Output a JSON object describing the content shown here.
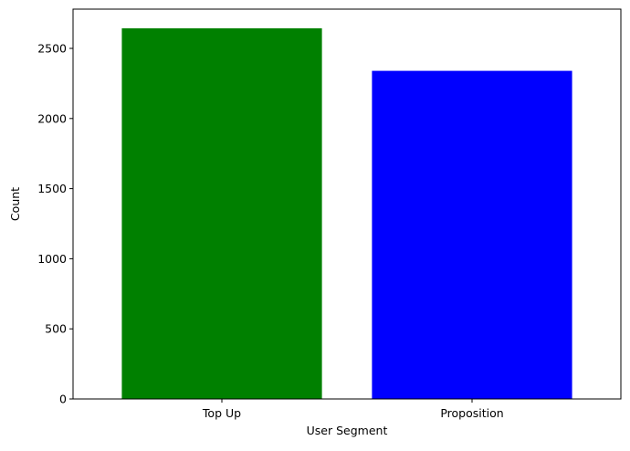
{
  "chart_data": {
    "type": "bar",
    "title": "",
    "xlabel": "User Segment",
    "ylabel": "Count",
    "categories": [
      "Top Up",
      "Proposition"
    ],
    "values": [
      2643,
      2340
    ],
    "colors": [
      "#008000",
      "#0000ff"
    ],
    "ylim": [
      0,
      2780
    ],
    "yticks": [
      0,
      500,
      1000,
      1500,
      2000,
      2500
    ],
    "grid": false,
    "legend": "none"
  }
}
